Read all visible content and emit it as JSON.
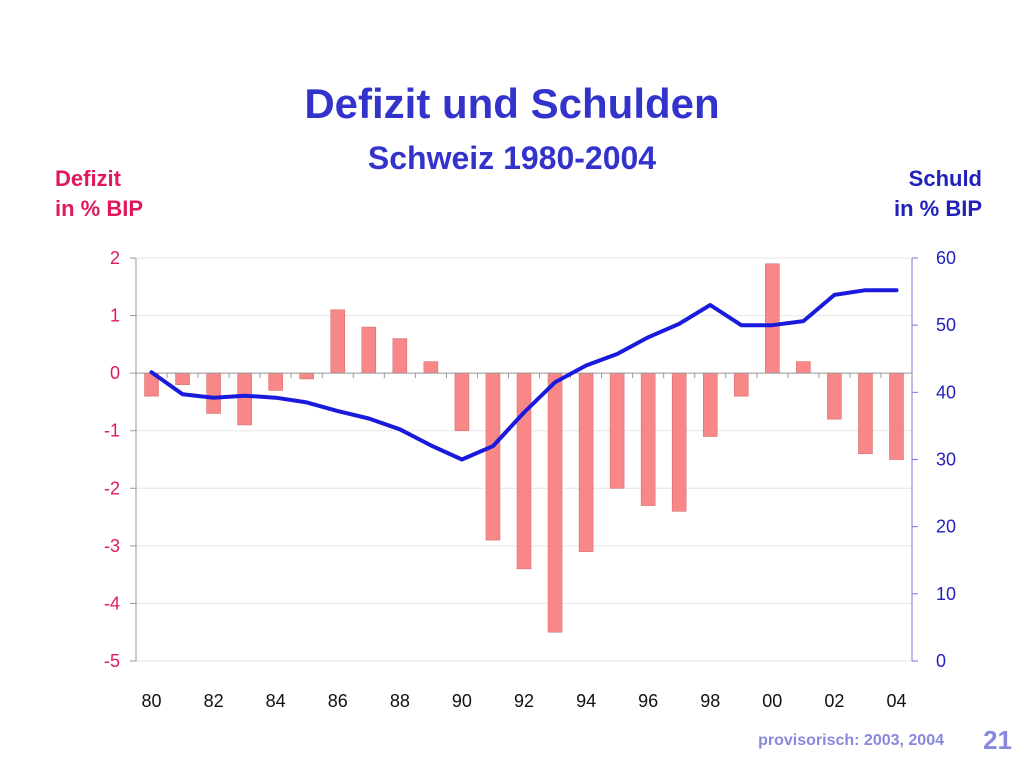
{
  "page": {
    "title": "Defizit und Schulden",
    "subtitle": "Schweiz 1980-2004",
    "left_axis_label": [
      "Defizit",
      "in % BIP"
    ],
    "right_axis_label": [
      "Schuld",
      "in % BIP"
    ],
    "footnote": "provisorisch: 2003, 2004",
    "page_number": "21"
  },
  "colors": {
    "title": "#3333cc",
    "bar": "#f88888",
    "line": "#1a1add",
    "left_axis": "#e0195e",
    "right_axis": "#2222bb"
  },
  "chart_data": {
    "type": "bar+line",
    "title": "Defizit und Schulden",
    "subtitle": "Schweiz 1980-2004",
    "x": [
      1980,
      1981,
      1982,
      1983,
      1984,
      1985,
      1986,
      1987,
      1988,
      1989,
      1990,
      1991,
      1992,
      1993,
      1994,
      1995,
      1996,
      1997,
      1998,
      1999,
      2000,
      2001,
      2002,
      2003,
      2004
    ],
    "x_tick_labels": [
      "80",
      "82",
      "84",
      "86",
      "88",
      "90",
      "92",
      "94",
      "96",
      "98",
      "00",
      "02",
      "04"
    ],
    "series": [
      {
        "type": "bar",
        "axis": "left",
        "values": [
          -0.4,
          -0.2,
          -0.7,
          -0.9,
          -0.3,
          -0.1,
          1.1,
          0.8,
          0.6,
          0.2,
          -1.0,
          -2.9,
          -3.4,
          -4.5,
          -3.1,
          -2.0,
          -2.3,
          -2.4,
          -1.1,
          -0.4,
          1.9,
          0.2,
          -0.8,
          -1.4,
          -1.5
        ]
      },
      {
        "type": "line",
        "axis": "right",
        "values": [
          43.0,
          39.7,
          39.2,
          39.5,
          39.2,
          38.5,
          37.2,
          36.1,
          34.5,
          32.1,
          30.0,
          32.0,
          37.0,
          41.5,
          44.0,
          45.7,
          48.2,
          50.2,
          53.0,
          50.0,
          50.0,
          50.6,
          54.5,
          55.2,
          55.2
        ]
      }
    ],
    "left_axis": {
      "label": "Defizit in % BIP",
      "range": [
        -5,
        2
      ],
      "ticks": [
        2,
        1,
        0,
        -1,
        -2,
        -3,
        -4,
        -5
      ]
    },
    "right_axis": {
      "label": "Schuld in % BIP",
      "range": [
        0,
        60
      ],
      "ticks": [
        60,
        50,
        40,
        30,
        20,
        10,
        0
      ]
    },
    "grid": true
  }
}
